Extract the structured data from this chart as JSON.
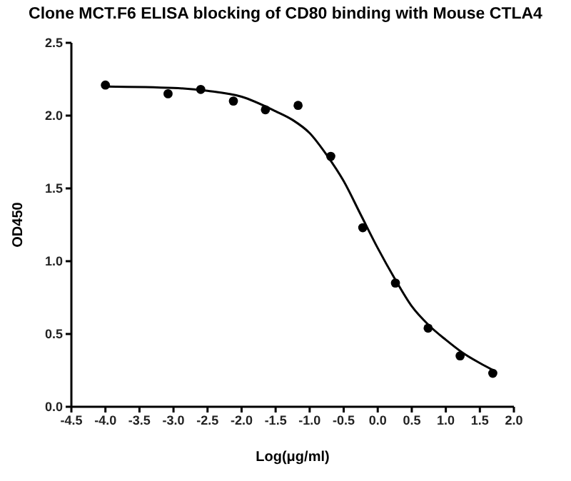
{
  "chart_data": {
    "type": "scatter",
    "title": "Clone MCT.F6 ELISA blocking of CD80 binding with Mouse CTLA4",
    "xlabel": "Log(μg/ml)",
    "ylabel": "OD450",
    "series": [
      {
        "color": "#000000",
        "marker": "circle",
        "x": [
          -4.0,
          -3.08,
          -2.6,
          -2.12,
          -1.65,
          -1.17,
          -0.69,
          -0.22,
          0.26,
          0.74,
          1.21,
          1.69
        ],
        "values": [
          2.21,
          2.15,
          2.18,
          2.1,
          2.04,
          2.07,
          1.72,
          1.23,
          0.85,
          0.54,
          0.35,
          0.23
        ]
      },
      {
        "type": "line",
        "color": "#000000",
        "marker": "none",
        "line_style": "solid",
        "x": [
          -4.0,
          -3.0,
          -2.5,
          -2.0,
          -1.5,
          -1.25,
          -1.0,
          -0.75,
          -0.5,
          -0.25,
          0.0,
          0.25,
          0.5,
          0.75,
          1.0,
          1.25,
          1.5,
          1.7
        ],
        "values": [
          2.2,
          2.19,
          2.17,
          2.13,
          2.03,
          1.97,
          1.88,
          1.73,
          1.55,
          1.32,
          1.09,
          0.88,
          0.69,
          0.56,
          0.46,
          0.37,
          0.3,
          0.25
        ]
      }
    ],
    "xlim": [
      -4.5,
      2.0
    ],
    "xticks": [
      -4.5,
      {
        "value": -4.0,
        "label": "-4.0"
      },
      -3.5,
      {
        "value": -3.0,
        "label": "-3.0"
      },
      -2.5,
      {
        "value": -2.0,
        "label": "-2.0"
      },
      -1.5,
      {
        "value": -1.0,
        "label": "-1.0"
      },
      -0.5,
      {
        "value": 0,
        "label": "0.0"
      },
      0.5,
      {
        "value": 1.0,
        "label": "1.0"
      },
      1.5,
      {
        "value": 2.0,
        "label": "2.0"
      }
    ],
    "ylim": [
      0,
      2.5
    ],
    "yticks": [
      {
        "value": 0,
        "label": "0.0"
      },
      0.5,
      {
        "value": 1.0,
        "label": "1.0"
      },
      1.5,
      {
        "value": 2.0,
        "label": "2.0"
      },
      2.5
    ],
    "grid": false
  }
}
